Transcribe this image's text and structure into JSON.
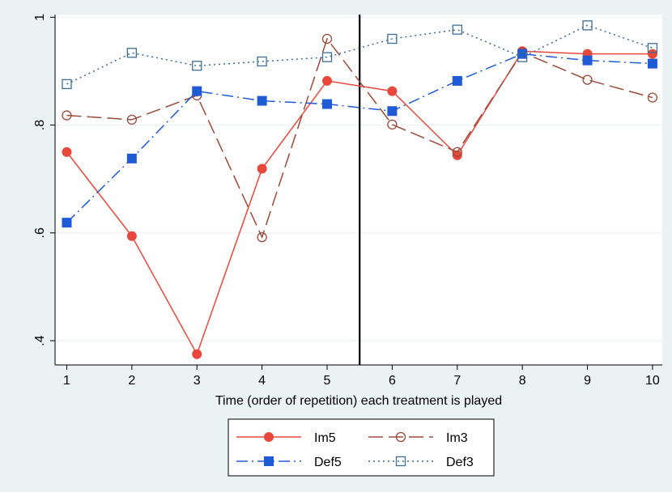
{
  "chart_data": {
    "type": "line",
    "xlabel": "Time (order of repetition) each treatment is played",
    "ylabel": "",
    "x": [
      1,
      2,
      3,
      4,
      5,
      6,
      7,
      8,
      9,
      10
    ],
    "xticks": [
      "1",
      "2",
      "3",
      "4",
      "5",
      "6",
      "7",
      "8",
      "9",
      "10"
    ],
    "yticks": [
      {
        "value": 0.4,
        "label": ".4"
      },
      {
        "value": 0.6,
        "label": ".6"
      },
      {
        "value": 0.8,
        "label": ".8"
      },
      {
        "value": 1.0,
        "label": "1"
      }
    ],
    "xlim": [
      0.82,
      10.15
    ],
    "ylim": [
      0.355,
      1.005
    ],
    "vertical_line_x": 5.5,
    "grid": "horizontal",
    "legend_position": "bottom",
    "series": [
      {
        "name": "Im5",
        "color": "#e8483b",
        "dash": "solid",
        "marker": "filled-circle",
        "values": [
          0.75,
          0.594,
          0.375,
          0.719,
          0.882,
          0.863,
          0.744,
          0.937,
          0.932,
          0.932
        ]
      },
      {
        "name": "Im3",
        "color": "#9b4a3a",
        "dash": "long-dash",
        "marker": "hollow-circle",
        "values": [
          0.818,
          0.81,
          0.855,
          0.592,
          0.96,
          0.801,
          0.75,
          0.935,
          0.884,
          0.851
        ]
      },
      {
        "name": "Def5",
        "color": "#1f5bd4",
        "dash": "dash-dot",
        "marker": "filled-square",
        "values": [
          0.619,
          0.738,
          0.863,
          0.845,
          0.839,
          0.826,
          0.882,
          0.932,
          0.92,
          0.914
        ]
      },
      {
        "name": "Def3",
        "color": "#3c6d94",
        "dash": "dotted",
        "marker": "hollow-square",
        "values": [
          0.876,
          0.934,
          0.91,
          0.918,
          0.926,
          0.96,
          0.977,
          0.926,
          0.985,
          0.943
        ]
      }
    ]
  }
}
